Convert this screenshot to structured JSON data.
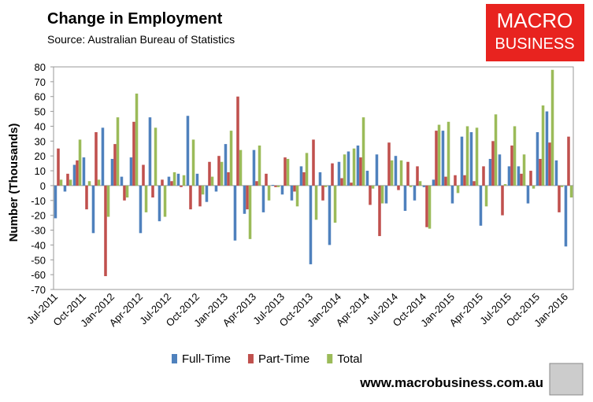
{
  "chart_data": {
    "type": "bar",
    "title": "Change in Employment",
    "subtitle": "Source: Australian Bureau of Statistics",
    "y_label": "Number (Thousands)",
    "categories": [
      "Jul-2011",
      null,
      null,
      "Oct-2011",
      null,
      null,
      "Jan-2012",
      null,
      null,
      "Apr-2012",
      null,
      null,
      "Jul-2012",
      null,
      null,
      "Oct-2012",
      null,
      null,
      "Jan-2013",
      null,
      null,
      "Apr-2013",
      null,
      null,
      "Jul-2013",
      null,
      null,
      "Oct-2013",
      null,
      null,
      "Jan-2014",
      null,
      null,
      "Apr-2014",
      null,
      null,
      "Jul-2014",
      null,
      null,
      "Oct-2014",
      null,
      null,
      "Jan-2015",
      null,
      null,
      "Apr-2015",
      null,
      null,
      "Jul-2015",
      null,
      null,
      "Oct-2015",
      null,
      null,
      "Jan-2016"
    ],
    "series": [
      {
        "name": "Full-Time",
        "color": "#4f81bd",
        "values": [
          -22,
          -4,
          14,
          19,
          -32,
          39,
          18,
          6,
          19,
          -32,
          46,
          -24,
          6,
          8,
          47,
          8,
          -11,
          -4,
          28,
          -37,
          -19,
          24,
          -18,
          0.5,
          -6,
          -10,
          13,
          -53,
          9,
          -40,
          16,
          23,
          27,
          10,
          21,
          -12,
          20,
          -17,
          -10,
          -1,
          4,
          37,
          -12,
          33,
          36,
          -27,
          18,
          21,
          13,
          13,
          -12,
          36,
          50,
          17,
          -41
        ]
      },
      {
        "name": "Part-Time",
        "color": "#c0504d",
        "values": [
          25,
          8,
          17,
          -16,
          36,
          -61,
          28,
          -10,
          43,
          14,
          -8,
          4,
          3,
          -1,
          -16,
          -14,
          16,
          20,
          9,
          60,
          -16,
          3,
          8,
          -1,
          19,
          -4,
          9,
          31,
          -10,
          15,
          5,
          2,
          19,
          -13,
          -34,
          29,
          -3,
          16,
          13,
          -28,
          37,
          6,
          7,
          7,
          3,
          13,
          30,
          -20,
          27,
          8,
          10,
          18,
          29,
          -18,
          33
        ]
      },
      {
        "name": "Total",
        "color": "#9bbb59",
        "values": [
          4,
          4,
          31,
          3,
          4,
          -21,
          46,
          -8,
          62,
          -18,
          39,
          -21,
          9,
          7,
          31,
          -6,
          6,
          16,
          37,
          24,
          -36,
          27,
          -10,
          -1,
          18,
          -14,
          22,
          -23,
          -1,
          -25,
          21,
          25,
          46,
          -2,
          -12,
          17,
          17,
          -1,
          3,
          -29,
          41,
          43,
          -5,
          40,
          39,
          -14,
          48,
          1,
          40,
          21,
          -2,
          54,
          78,
          -1,
          -8
        ]
      }
    ],
    "ylim": [
      -70,
      80
    ],
    "yticks": [
      -70,
      -60,
      -50,
      -40,
      -30,
      -20,
      -10,
      0,
      10,
      20,
      30,
      40,
      50,
      60,
      70,
      80
    ],
    "legend": "bottom",
    "logo": [
      "MACRO",
      "BUSINESS"
    ],
    "website": "www.macrobusiness.com.au"
  }
}
